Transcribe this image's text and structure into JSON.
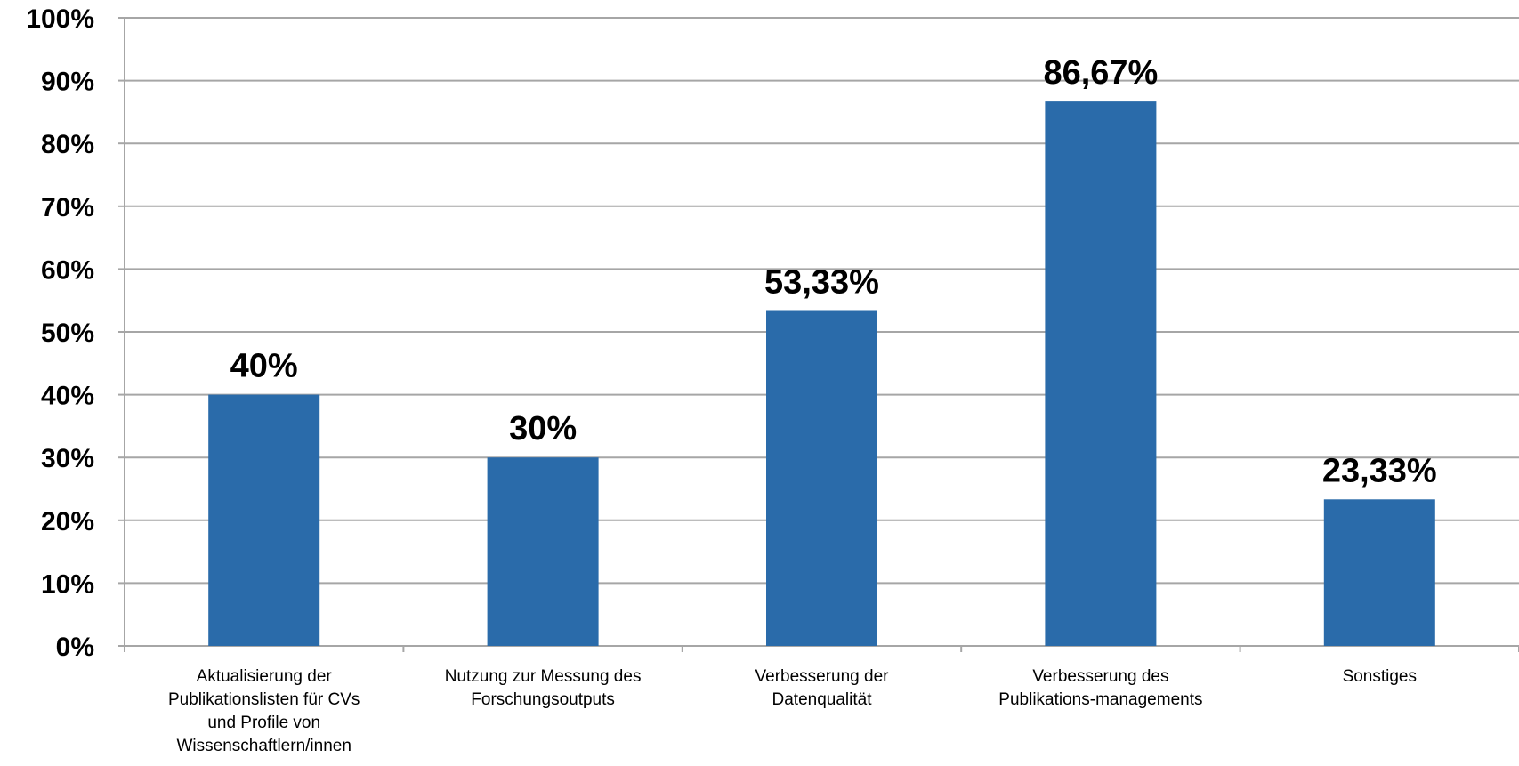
{
  "chart_data": {
    "type": "bar",
    "categories": [
      "Aktualisierung der Publikationslisten für CVs und Profile von Wissenschaftlern/innen",
      "Nutzung zur Messung des Forschungsoutputs",
      "Verbesserung der Datenqualität",
      "Verbesserung des Publikations-managements",
      "Sonstiges"
    ],
    "category_lines": [
      [
        "Aktualisierung der",
        "Publikationslisten für CVs",
        "und Profile von",
        "Wissenschaftlern/innen"
      ],
      [
        "Nutzung zur Messung des",
        "Forschungsoutputs"
      ],
      [
        "Verbesserung der",
        "Datenqualität"
      ],
      [
        "Verbesserung des",
        "Publikations-managements"
      ],
      [
        "Sonstiges"
      ]
    ],
    "values": [
      40,
      30,
      53.33,
      86.67,
      23.33
    ],
    "data_labels": [
      "40%",
      "30%",
      "53,33%",
      "86,67%",
      "23,33%"
    ],
    "yticks": [
      "0%",
      "10%",
      "20%",
      "30%",
      "40%",
      "50%",
      "60%",
      "70%",
      "80%",
      "90%",
      "100%"
    ],
    "ylim": [
      0,
      100
    ],
    "grid": true,
    "bar_color": "#2A6BAA",
    "grid_color": "#A6A6A6",
    "title": "",
    "xlabel": "",
    "ylabel": ""
  }
}
